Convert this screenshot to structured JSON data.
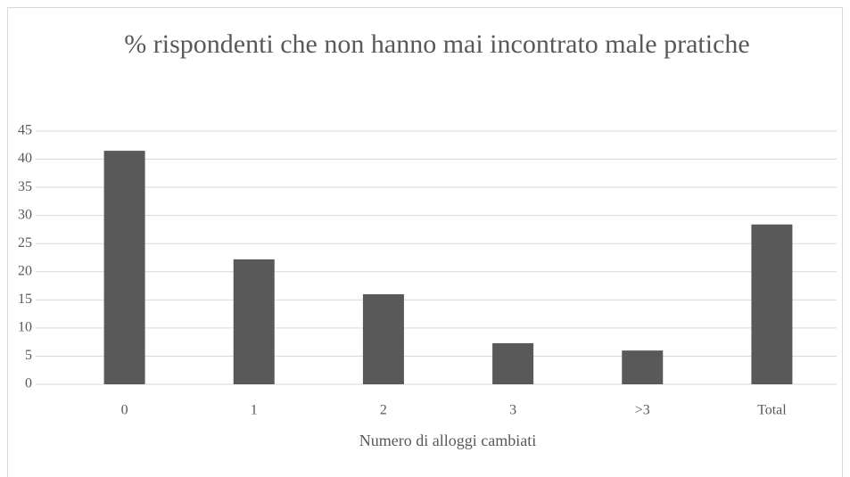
{
  "chart_data": {
    "type": "bar",
    "title": "% rispondenti che non hanno mai incontrato male pratiche",
    "x_label": "Numero di alloggi cambiati",
    "categories": [
      "0",
      "1",
      "2",
      "3",
      ">3",
      "Total"
    ],
    "values": [
      41.5,
      22.2,
      16,
      7.3,
      6,
      28.4
    ],
    "color": "#595959",
    "ylim": [
      0,
      45
    ],
    "yticks": [
      0,
      5,
      10,
      15,
      20,
      25,
      30,
      35,
      40,
      45
    ],
    "grid": true
  }
}
